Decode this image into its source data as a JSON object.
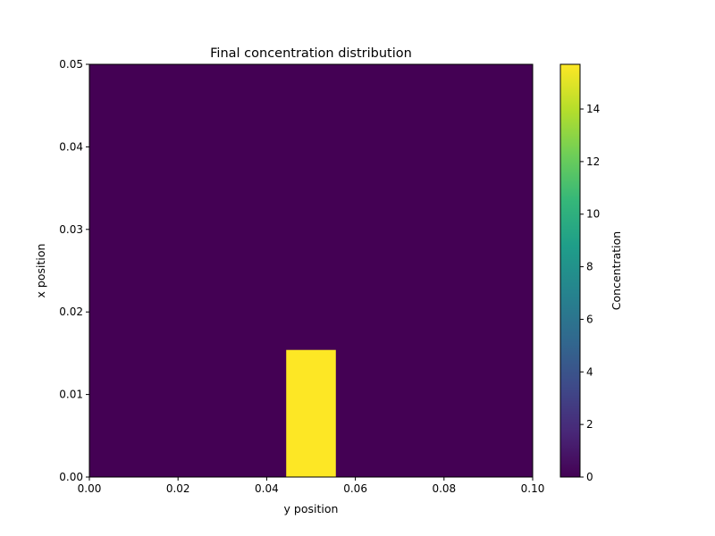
{
  "chart_data": {
    "type": "heatmap",
    "title": "Final concentration distribution",
    "xlabel": "y position",
    "ylabel": "x position",
    "xlim": [
      0.0,
      0.1
    ],
    "ylim": [
      0.0,
      0.05
    ],
    "xticks": [
      "0.00",
      "0.02",
      "0.04",
      "0.06",
      "0.08",
      "0.10"
    ],
    "xtick_values": [
      0.0,
      0.02,
      0.04,
      0.06,
      0.08,
      0.1
    ],
    "yticks": [
      "0.00",
      "0.01",
      "0.02",
      "0.03",
      "0.04",
      "0.05"
    ],
    "ytick_values": [
      0.0,
      0.01,
      0.02,
      0.03,
      0.04,
      0.05
    ],
    "colormap": "viridis",
    "grid": false,
    "background_value": 0,
    "cells": [
      {
        "x0": 0.0444,
        "x1": 0.0556,
        "y0": 0.0,
        "y1": 0.0154,
        "value": 15.7
      }
    ],
    "colorbar": {
      "label": "Concentration",
      "range": [
        0,
        15.7
      ],
      "ticks": [
        "0",
        "2",
        "4",
        "6",
        "8",
        "10",
        "12",
        "14"
      ],
      "tick_values": [
        0,
        2,
        4,
        6,
        8,
        10,
        12,
        14
      ]
    }
  }
}
